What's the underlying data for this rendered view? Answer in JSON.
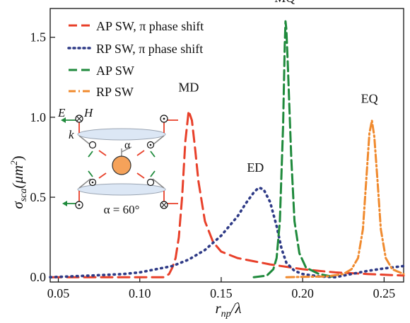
{
  "chart_data": {
    "type": "line",
    "xlabel": "r_np/λ",
    "xlabel_main": "r",
    "xlabel_sub": "np",
    "xlabel_tail": "/λ",
    "ylabel_main": "σ",
    "ylabel_sub": "sca",
    "ylabel_unit": "(μm",
    "ylabel_exp": "2",
    "ylabel_close": ")",
    "xlim": [
      0.045,
      0.262
    ],
    "ylim": [
      -0.03,
      1.68
    ],
    "xticks": [
      "0.05",
      "0.10",
      "0.15",
      "0.20",
      "0.25"
    ],
    "xtick_values": [
      0.05,
      0.1,
      0.15,
      0.2,
      0.25
    ],
    "yticks": [
      "0.0",
      "0.5",
      "1.0",
      "1.5"
    ],
    "ytick_values": [
      0.0,
      0.5,
      1.0,
      1.5
    ],
    "grid": false,
    "legend_position": "top-left",
    "series": [
      {
        "name": "AP SW, π phase shift",
        "color": "#e8402a",
        "style": "long-dash",
        "points": [
          [
            0.045,
            0.0
          ],
          [
            0.1,
            0.0
          ],
          [
            0.115,
            0.0
          ],
          [
            0.118,
            0.02
          ],
          [
            0.12,
            0.06
          ],
          [
            0.122,
            0.12
          ],
          [
            0.124,
            0.25
          ],
          [
            0.126,
            0.5
          ],
          [
            0.128,
            0.85
          ],
          [
            0.13,
            1.04
          ],
          [
            0.132,
            0.98
          ],
          [
            0.134,
            0.8
          ],
          [
            0.136,
            0.6
          ],
          [
            0.14,
            0.35
          ],
          [
            0.145,
            0.22
          ],
          [
            0.15,
            0.16
          ],
          [
            0.16,
            0.12
          ],
          [
            0.17,
            0.1
          ],
          [
            0.18,
            0.08
          ],
          [
            0.19,
            0.065
          ],
          [
            0.2,
            0.05
          ],
          [
            0.21,
            0.04
          ],
          [
            0.22,
            0.03
          ],
          [
            0.24,
            0.02
          ],
          [
            0.262,
            0.01
          ]
        ]
      },
      {
        "name": "RP SW, π phase shift",
        "color": "#2e3a86",
        "style": "dotted",
        "points": [
          [
            0.045,
            0.0
          ],
          [
            0.07,
            0.01
          ],
          [
            0.09,
            0.02
          ],
          [
            0.1,
            0.03
          ],
          [
            0.11,
            0.05
          ],
          [
            0.12,
            0.07
          ],
          [
            0.13,
            0.11
          ],
          [
            0.14,
            0.17
          ],
          [
            0.15,
            0.26
          ],
          [
            0.16,
            0.38
          ],
          [
            0.165,
            0.46
          ],
          [
            0.17,
            0.53
          ],
          [
            0.173,
            0.56
          ],
          [
            0.176,
            0.55
          ],
          [
            0.18,
            0.47
          ],
          [
            0.184,
            0.32
          ],
          [
            0.187,
            0.18
          ],
          [
            0.19,
            0.09
          ],
          [
            0.195,
            0.04
          ],
          [
            0.2,
            0.02
          ],
          [
            0.21,
            0.005
          ],
          [
            0.22,
            0.0
          ],
          [
            0.23,
            0.02
          ],
          [
            0.24,
            0.04
          ],
          [
            0.25,
            0.055
          ],
          [
            0.262,
            0.07
          ]
        ]
      },
      {
        "name": "AP SW",
        "color": "#1f8a3c",
        "style": "dash",
        "points": [
          [
            0.17,
            0.0
          ],
          [
            0.178,
            0.01
          ],
          [
            0.182,
            0.05
          ],
          [
            0.184,
            0.12
          ],
          [
            0.186,
            0.35
          ],
          [
            0.188,
            0.95
          ],
          [
            0.189,
            1.45
          ],
          [
            0.1895,
            1.6
          ],
          [
            0.19,
            1.55
          ],
          [
            0.191,
            1.3
          ],
          [
            0.193,
            0.75
          ],
          [
            0.195,
            0.35
          ],
          [
            0.198,
            0.15
          ],
          [
            0.202,
            0.06
          ],
          [
            0.21,
            0.02
          ],
          [
            0.22,
            0.0
          ]
        ]
      },
      {
        "name": "RP SW",
        "color": "#f08a2e",
        "style": "dash-dot",
        "points": [
          [
            0.19,
            0.0
          ],
          [
            0.215,
            0.005
          ],
          [
            0.225,
            0.02
          ],
          [
            0.23,
            0.05
          ],
          [
            0.234,
            0.12
          ],
          [
            0.237,
            0.3
          ],
          [
            0.239,
            0.6
          ],
          [
            0.241,
            0.9
          ],
          [
            0.2425,
            0.98
          ],
          [
            0.244,
            0.88
          ],
          [
            0.246,
            0.6
          ],
          [
            0.248,
            0.3
          ],
          [
            0.251,
            0.12
          ],
          [
            0.255,
            0.05
          ],
          [
            0.262,
            0.02
          ]
        ]
      }
    ],
    "peak_labels": [
      {
        "text": "MD",
        "x": 0.13,
        "y": 1.16
      },
      {
        "text": "ED",
        "x": 0.171,
        "y": 0.66
      },
      {
        "text": "MQ",
        "x": 0.189,
        "y": 1.72
      },
      {
        "text": "EQ",
        "x": 0.241,
        "y": 1.09
      }
    ]
  },
  "inset": {
    "e_label": "E",
    "h_label": "H",
    "k_label": "k",
    "alpha_label": "α",
    "angle_label": "α = 60°",
    "colors": {
      "e_green": "#1f8a3c",
      "k_red": "#e8402a",
      "particle": "#f5a25a",
      "disk": "#dce7f5"
    }
  }
}
